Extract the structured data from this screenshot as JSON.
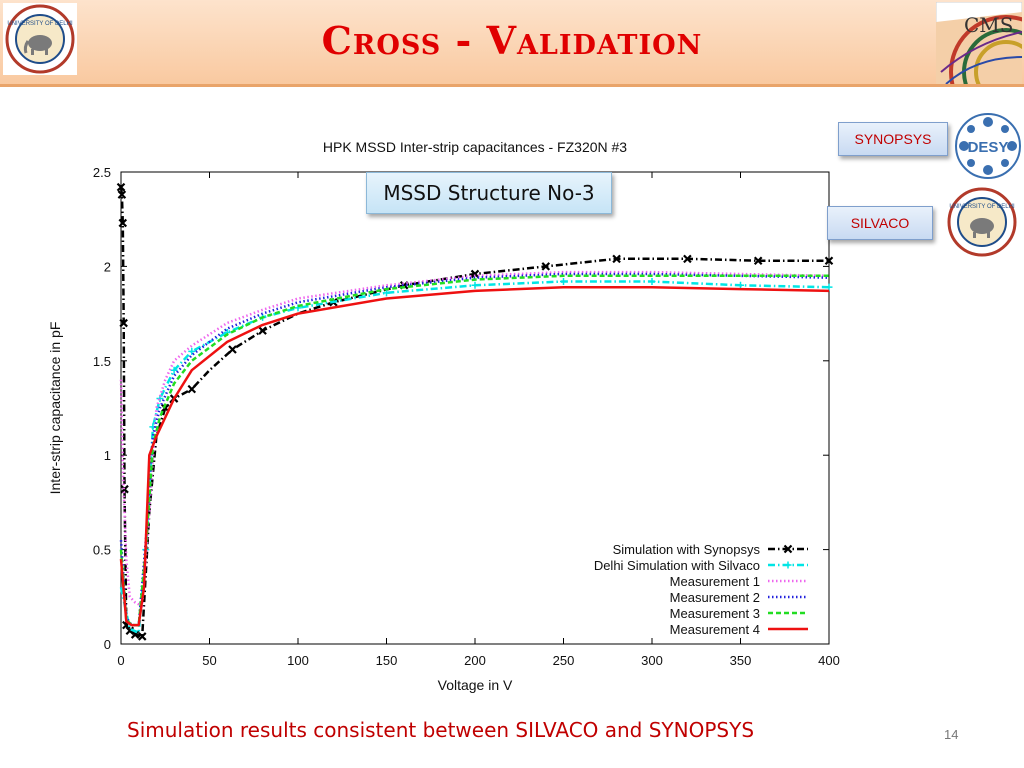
{
  "slide": {
    "title": "Cross - Validation",
    "callout": "MSSD Structure No-3",
    "tag_synopsys": "SYNOPSYS",
    "tag_silvaco": "SILVACO",
    "caption": "Simulation results consistent between SILVACO and SYNOPSYS",
    "page_number": "14",
    "logos": {
      "du_top_text": "UNIVERSITY OF DELHI",
      "du_small_text": "UNIVERSITY OF DELHI",
      "cms_text": "CMS",
      "desy_text": "DESY"
    },
    "icons": [
      "university-of-delhi-logo",
      "cms-logo",
      "desy-logo"
    ]
  },
  "colors": {
    "title": "#e00000",
    "caption": "#c00000",
    "header_bg": "#fbd5b5"
  },
  "chart_data": {
    "type": "line",
    "title": "HPK MSSD Inter-strip capacitances - FZ320N #3",
    "xlabel": "Voltage in V",
    "ylabel": "Inter-strip capacitance in pF",
    "xlim": [
      0,
      400
    ],
    "ylim": [
      0,
      2.5
    ],
    "xticks": [
      0,
      50,
      100,
      150,
      200,
      250,
      300,
      350,
      400
    ],
    "yticks": [
      0,
      0.5,
      1,
      1.5,
      2,
      2.5
    ],
    "legend_position": "bottom-right",
    "series": [
      {
        "name": "Simulation with Synopsys",
        "color": "#000000",
        "style": "dashdot",
        "marker": "x",
        "x": [
          0,
          0.5,
          1,
          1.5,
          2,
          3,
          5,
          8,
          12,
          16,
          20,
          25,
          30,
          40,
          50,
          63,
          80,
          100,
          120,
          160,
          200,
          240,
          280,
          320,
          360,
          400
        ],
        "y": [
          2.42,
          2.38,
          2.23,
          1.7,
          0.82,
          0.1,
          0.07,
          0.05,
          0.04,
          0.7,
          1.1,
          1.25,
          1.3,
          1.35,
          1.45,
          1.56,
          1.66,
          1.75,
          1.81,
          1.9,
          1.96,
          2.0,
          2.04,
          2.04,
          2.03,
          2.03
        ],
        "markers_x": [
          0,
          0.5,
          1,
          1.5,
          2,
          3,
          5,
          8,
          12,
          25,
          30,
          40,
          63,
          80,
          120,
          160,
          200,
          240,
          280,
          320,
          360,
          400
        ],
        "markers_y": [
          2.42,
          2.38,
          2.23,
          1.7,
          0.82,
          0.1,
          0.07,
          0.05,
          0.04,
          1.25,
          1.3,
          1.35,
          1.56,
          1.66,
          1.81,
          1.9,
          1.96,
          2.0,
          2.04,
          2.04,
          2.03,
          2.03
        ]
      },
      {
        "name": "Delhi Simulation with Silvaco",
        "color": "#00e5e5",
        "style": "dashdot",
        "marker": "+",
        "x": [
          0,
          5,
          10,
          14,
          18,
          22,
          30,
          40,
          60,
          80,
          100,
          150,
          200,
          250,
          300,
          350,
          400
        ],
        "y": [
          0.3,
          0.08,
          0.06,
          0.5,
          1.15,
          1.3,
          1.45,
          1.55,
          1.65,
          1.73,
          1.78,
          1.86,
          1.9,
          1.92,
          1.92,
          1.9,
          1.89
        ],
        "markers_x": [
          14,
          18,
          22,
          30,
          40,
          60,
          80,
          100,
          150,
          200,
          250,
          300,
          350,
          400
        ],
        "markers_y": [
          0.5,
          1.15,
          1.3,
          1.45,
          1.55,
          1.65,
          1.73,
          1.78,
          1.86,
          1.9,
          1.92,
          1.92,
          1.9,
          1.89
        ]
      },
      {
        "name": "Measurement 1",
        "color": "#ee66ee",
        "style": "dotted",
        "x": [
          0,
          1,
          3,
          5,
          8,
          12,
          16,
          20,
          25,
          30,
          40,
          60,
          80,
          100,
          150,
          200,
          250,
          300,
          350,
          400
        ],
        "y": [
          1.4,
          0.95,
          0.45,
          0.25,
          0.22,
          0.2,
          0.7,
          1.25,
          1.4,
          1.5,
          1.58,
          1.7,
          1.77,
          1.83,
          1.9,
          1.95,
          1.97,
          1.97,
          1.96,
          1.95
        ]
      },
      {
        "name": "Measurement 2",
        "color": "#2222dd",
        "style": "dotted",
        "x": [
          0,
          3,
          6,
          10,
          14,
          18,
          22,
          30,
          40,
          60,
          80,
          100,
          150,
          200,
          250,
          300,
          350,
          400
        ],
        "y": [
          0.55,
          0.14,
          0.1,
          0.1,
          0.55,
          1.1,
          1.25,
          1.42,
          1.53,
          1.67,
          1.75,
          1.81,
          1.89,
          1.94,
          1.96,
          1.96,
          1.95,
          1.94
        ]
      },
      {
        "name": "Measurement 3",
        "color": "#22dd22",
        "style": "dashed",
        "x": [
          0,
          3,
          6,
          10,
          14,
          18,
          22,
          30,
          40,
          60,
          80,
          100,
          150,
          200,
          250,
          300,
          350,
          400
        ],
        "y": [
          0.5,
          0.13,
          0.1,
          0.1,
          0.5,
          1.05,
          1.2,
          1.38,
          1.5,
          1.64,
          1.73,
          1.79,
          1.88,
          1.93,
          1.95,
          1.95,
          1.95,
          1.95
        ]
      },
      {
        "name": "Measurement 4",
        "color": "#ee1111",
        "style": "solid",
        "x": [
          0,
          3,
          6,
          10,
          13,
          16,
          20,
          25,
          30,
          40,
          60,
          80,
          100,
          150,
          200,
          250,
          300,
          350,
          400
        ],
        "y": [
          0.45,
          0.12,
          0.1,
          0.1,
          0.3,
          1.0,
          1.1,
          1.2,
          1.3,
          1.45,
          1.6,
          1.69,
          1.75,
          1.83,
          1.87,
          1.89,
          1.89,
          1.88,
          1.87
        ]
      }
    ]
  }
}
